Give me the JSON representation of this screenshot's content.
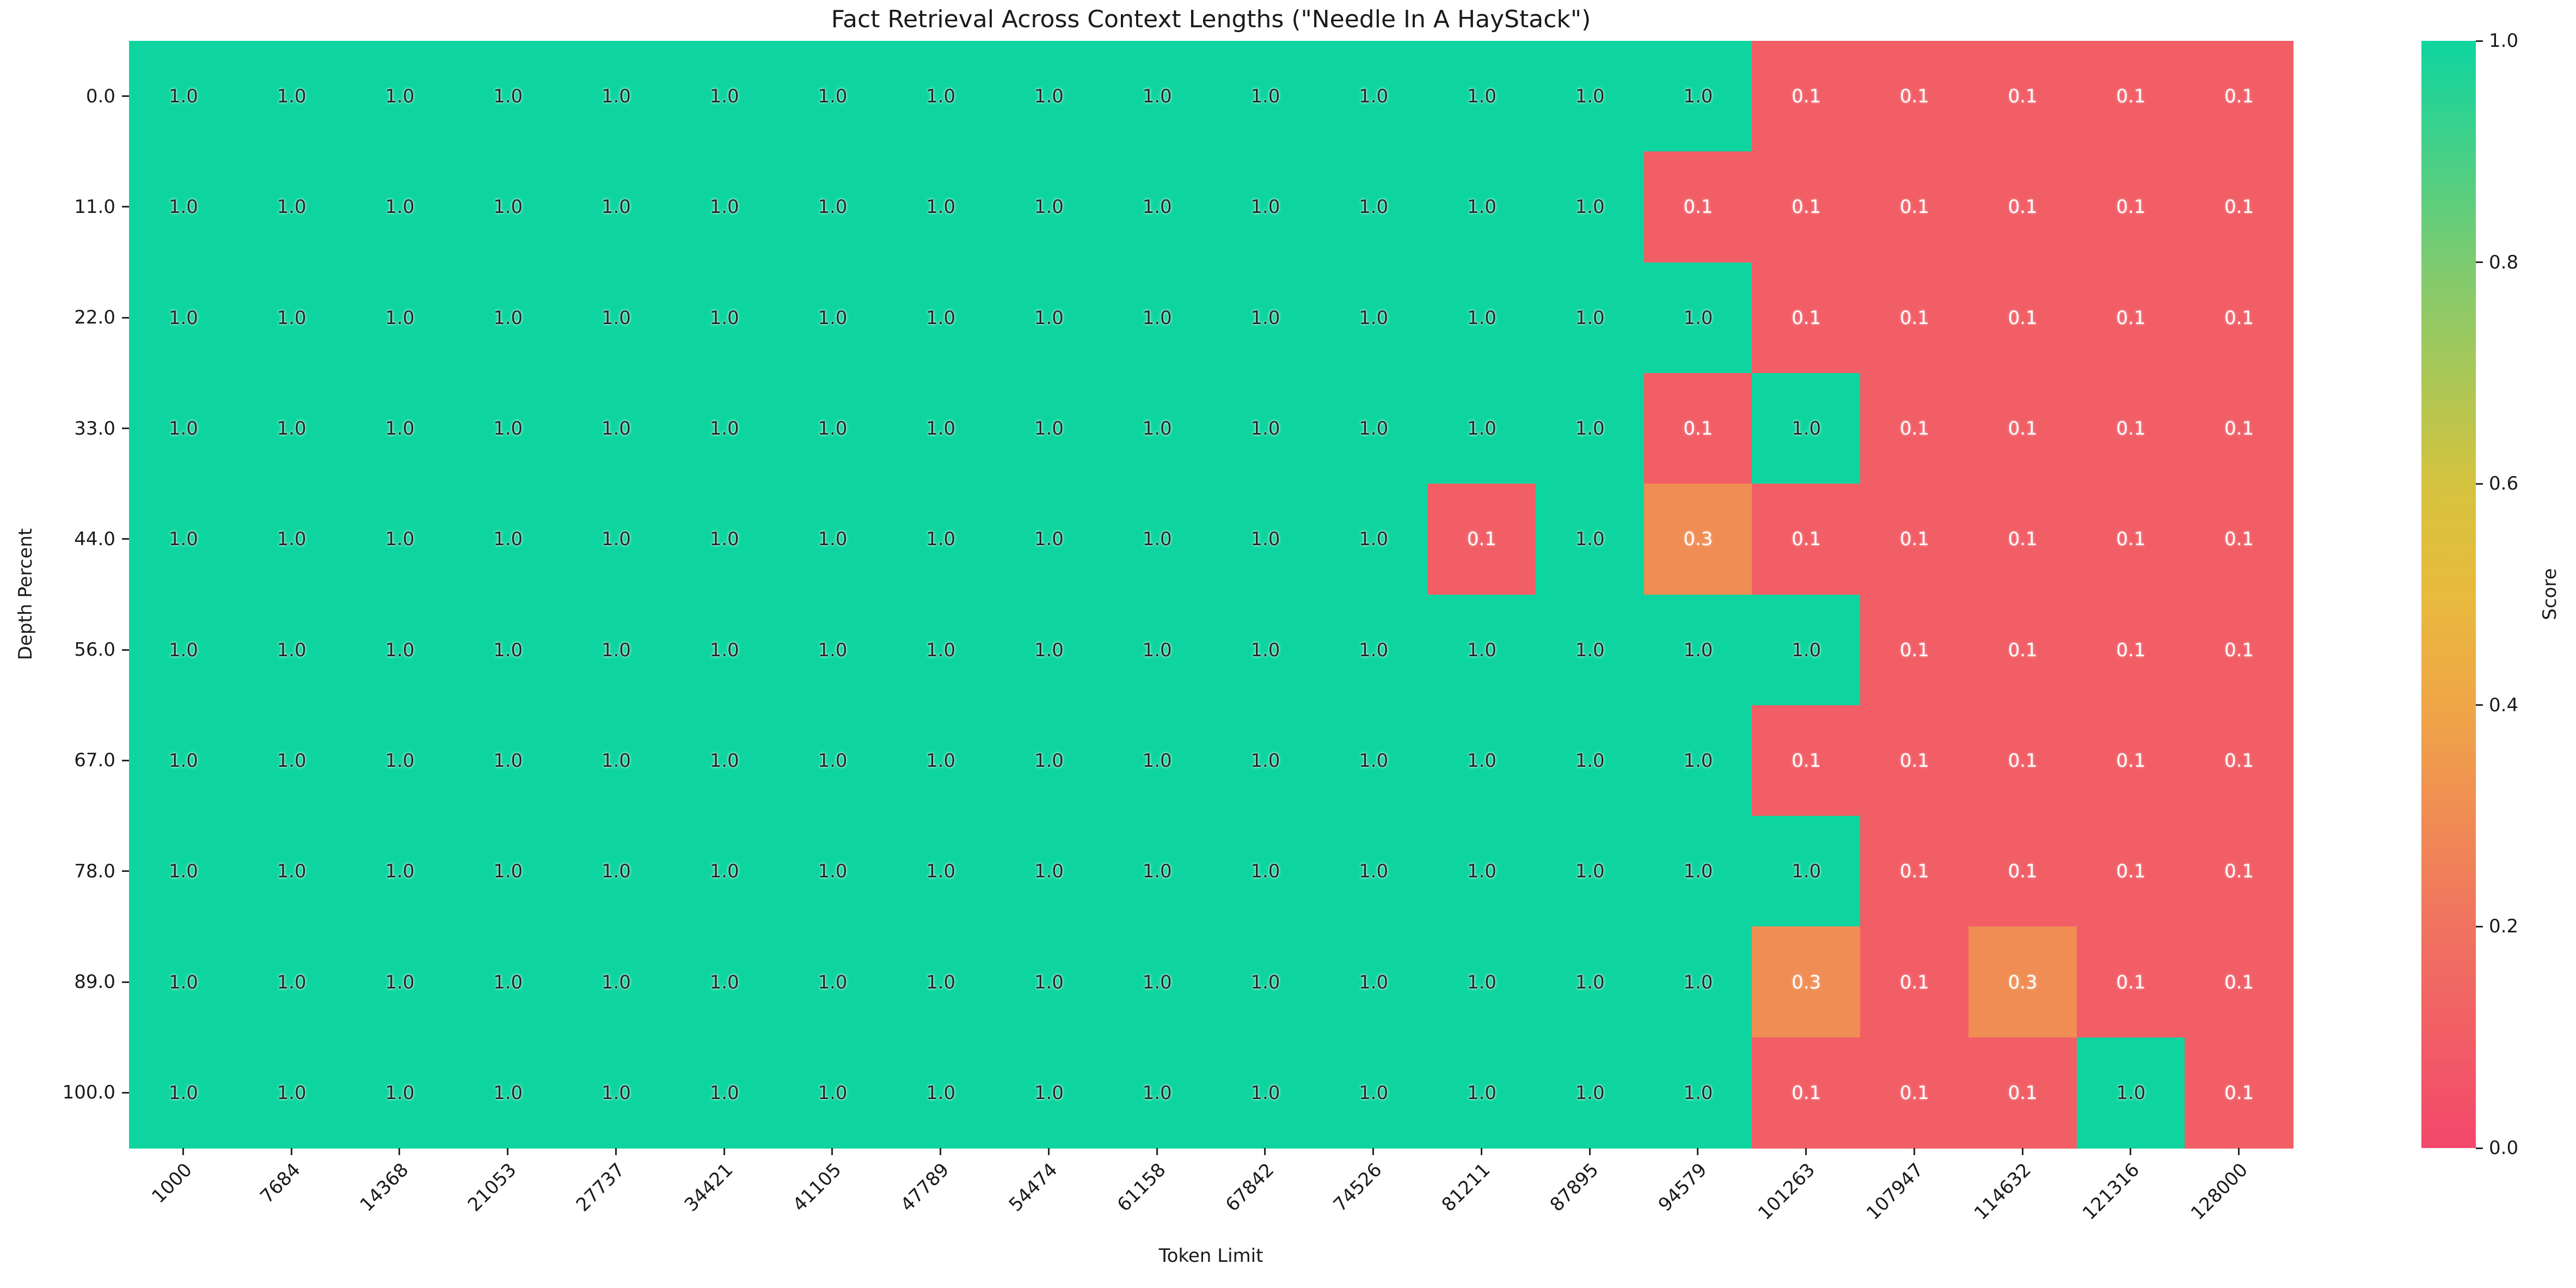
{
  "figure": {
    "title": "Fact Retrieval Across Context Lengths (\"Needle In A HayStack\")"
  },
  "chart_data": {
    "type": "heatmap",
    "title": "Fact Retrieval Across Context Lengths (\"Needle In A HayStack\")",
    "xlabel": "Token Limit",
    "ylabel": "Depth Percent",
    "x_categories": [
      1000,
      7684,
      14368,
      21053,
      27737,
      34421,
      41105,
      47789,
      54474,
      61158,
      67842,
      74526,
      81211,
      87895,
      94579,
      101263,
      107947,
      114632,
      121316,
      128000
    ],
    "x_tick_labels": [
      "1000",
      "7684",
      "14368",
      "21053",
      "27737",
      "34421",
      "41105",
      "47789",
      "54474",
      "61158",
      "67842",
      "74526",
      "81211",
      "87895",
      "94579",
      "101263",
      "107947",
      "114632",
      "121316",
      "128000"
    ],
    "y_categories": [
      0.0,
      11.0,
      22.0,
      33.0,
      44.0,
      56.0,
      67.0,
      78.0,
      89.0,
      100.0
    ],
    "y_tick_labels": [
      "0.0",
      "11.0",
      "22.0",
      "33.0",
      "44.0",
      "56.0",
      "67.0",
      "78.0",
      "89.0",
      "100.0"
    ],
    "values": [
      [
        1.0,
        1.0,
        1.0,
        1.0,
        1.0,
        1.0,
        1.0,
        1.0,
        1.0,
        1.0,
        1.0,
        1.0,
        1.0,
        1.0,
        1.0,
        0.1,
        0.1,
        0.1,
        0.1,
        0.1
      ],
      [
        1.0,
        1.0,
        1.0,
        1.0,
        1.0,
        1.0,
        1.0,
        1.0,
        1.0,
        1.0,
        1.0,
        1.0,
        1.0,
        1.0,
        0.1,
        0.1,
        0.1,
        0.1,
        0.1,
        0.1
      ],
      [
        1.0,
        1.0,
        1.0,
        1.0,
        1.0,
        1.0,
        1.0,
        1.0,
        1.0,
        1.0,
        1.0,
        1.0,
        1.0,
        1.0,
        1.0,
        0.1,
        0.1,
        0.1,
        0.1,
        0.1
      ],
      [
        1.0,
        1.0,
        1.0,
        1.0,
        1.0,
        1.0,
        1.0,
        1.0,
        1.0,
        1.0,
        1.0,
        1.0,
        1.0,
        1.0,
        0.1,
        1.0,
        0.1,
        0.1,
        0.1,
        0.1
      ],
      [
        1.0,
        1.0,
        1.0,
        1.0,
        1.0,
        1.0,
        1.0,
        1.0,
        1.0,
        1.0,
        1.0,
        1.0,
        0.1,
        1.0,
        0.3,
        0.1,
        0.1,
        0.1,
        0.1,
        0.1
      ],
      [
        1.0,
        1.0,
        1.0,
        1.0,
        1.0,
        1.0,
        1.0,
        1.0,
        1.0,
        1.0,
        1.0,
        1.0,
        1.0,
        1.0,
        1.0,
        1.0,
        0.1,
        0.1,
        0.1,
        0.1
      ],
      [
        1.0,
        1.0,
        1.0,
        1.0,
        1.0,
        1.0,
        1.0,
        1.0,
        1.0,
        1.0,
        1.0,
        1.0,
        1.0,
        1.0,
        1.0,
        0.1,
        0.1,
        0.1,
        0.1,
        0.1
      ],
      [
        1.0,
        1.0,
        1.0,
        1.0,
        1.0,
        1.0,
        1.0,
        1.0,
        1.0,
        1.0,
        1.0,
        1.0,
        1.0,
        1.0,
        1.0,
        1.0,
        0.1,
        0.1,
        0.1,
        0.1
      ],
      [
        1.0,
        1.0,
        1.0,
        1.0,
        1.0,
        1.0,
        1.0,
        1.0,
        1.0,
        1.0,
        1.0,
        1.0,
        1.0,
        1.0,
        1.0,
        0.3,
        0.1,
        0.3,
        0.1,
        0.1
      ],
      [
        1.0,
        1.0,
        1.0,
        1.0,
        1.0,
        1.0,
        1.0,
        1.0,
        1.0,
        1.0,
        1.0,
        1.0,
        1.0,
        1.0,
        1.0,
        0.1,
        0.1,
        0.1,
        1.0,
        0.1
      ]
    ],
    "value_range": [
      0.0,
      1.0
    ],
    "colorbar": {
      "label": "Score",
      "ticks": [
        1.0,
        0.8,
        0.6,
        0.4,
        0.2,
        0.0
      ],
      "tick_labels": [
        "1.0",
        "0.8",
        "0.6",
        "0.4",
        "0.2",
        "0.0"
      ]
    },
    "colormap_stops": [
      [
        0.0,
        "#F2486B"
      ],
      [
        0.2,
        "#F07360"
      ],
      [
        0.4,
        "#EFA647"
      ],
      [
        0.5,
        "#E8BA3D"
      ],
      [
        0.6,
        "#D5C33F"
      ],
      [
        0.8,
        "#7CCB70"
      ],
      [
        1.0,
        "#0ED5A0"
      ]
    ],
    "legend_position": "right",
    "grid": false,
    "colors": {
      "cell_text_dark": "#262626",
      "cell_text_light": "#FFFFFF",
      "axis_text": "#1A1A1A",
      "background": "#FFFFFF"
    }
  }
}
